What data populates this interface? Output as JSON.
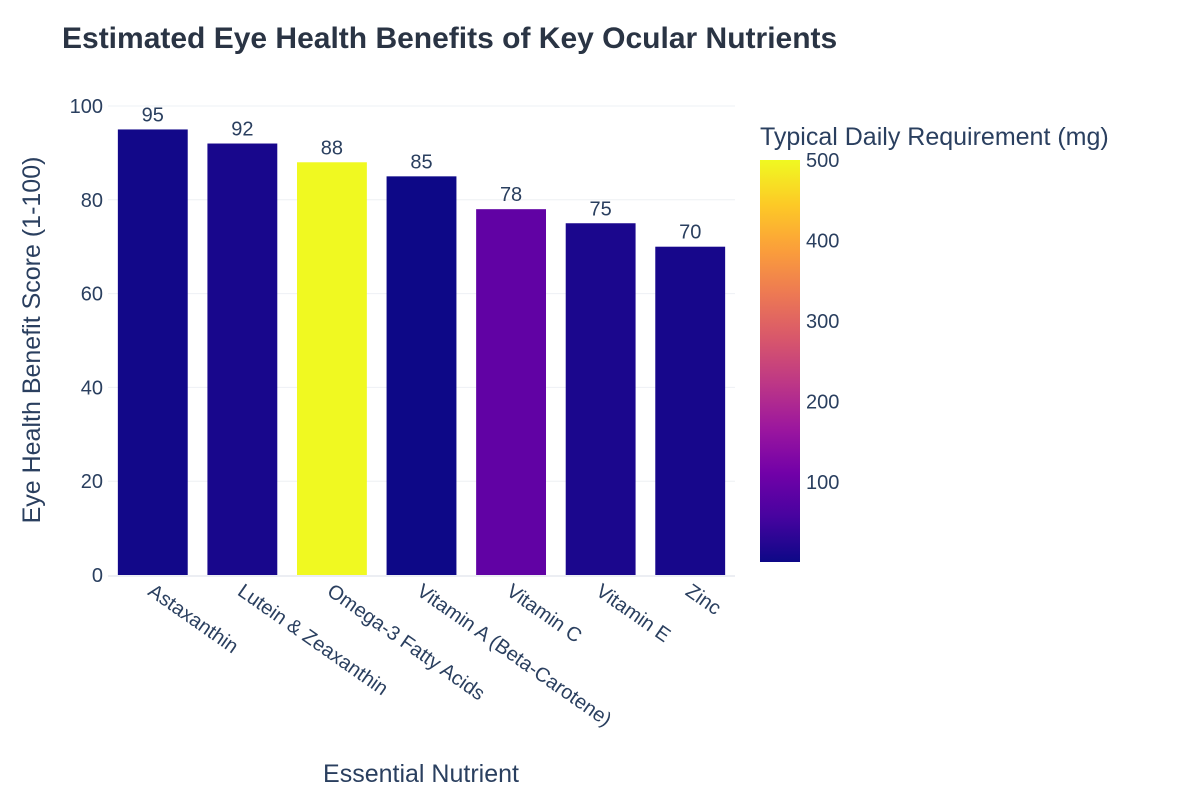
{
  "chart_data": {
    "type": "bar",
    "title": "Estimated Eye Health Benefits of Key Ocular Nutrients",
    "xlabel": "Essential Nutrient",
    "ylabel": "Eye Health Benefit Score (1-100)",
    "categories": [
      "Astaxanthin",
      "Lutein & Zeaxanthin",
      "Omega-3 Fatty Acids",
      "Vitamin A (Beta-Carotene)",
      "Vitamin C",
      "Vitamin E",
      "Zinc"
    ],
    "values": [
      95,
      92,
      88,
      85,
      78,
      75,
      70
    ],
    "color_values": [
      6,
      12,
      500,
      1,
      90,
      15,
      11
    ],
    "ylim": [
      0,
      100
    ],
    "yticks": [
      0,
      20,
      40,
      60,
      80,
      100
    ],
    "grid": true,
    "colorbar": {
      "title": "Typical Daily Requirement (mg)",
      "range": [
        1,
        500
      ],
      "ticks": [
        100,
        200,
        300,
        400,
        500
      ],
      "colorscale": "Plasma"
    }
  }
}
